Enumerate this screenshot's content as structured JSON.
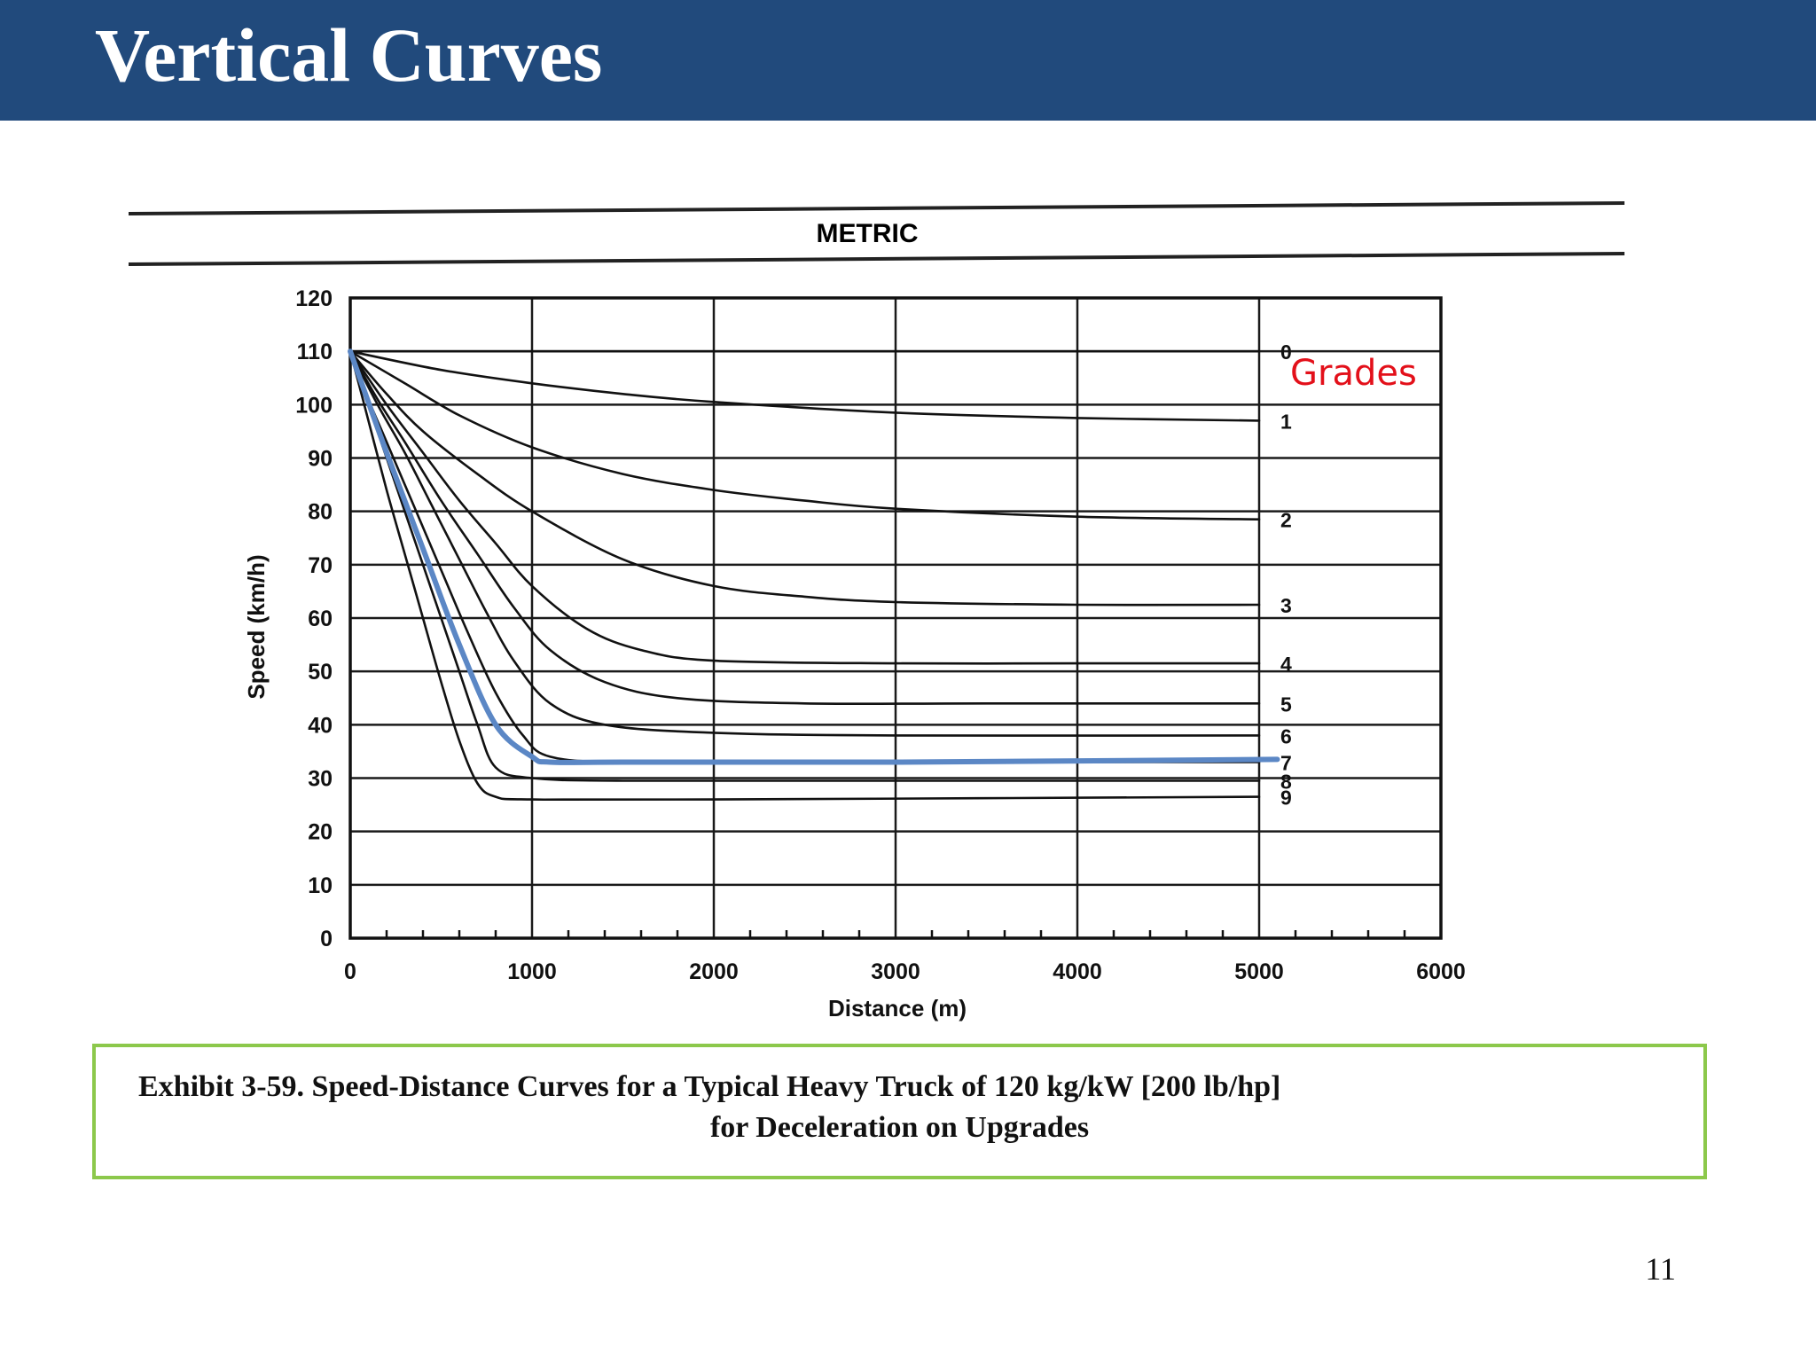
{
  "slide": {
    "title": "Vertical Curves",
    "page_number": "11",
    "header_color": "#214a7c"
  },
  "chart_header": {
    "label": "METRIC"
  },
  "annotation": {
    "text": "Grades",
    "color": "#e3101a"
  },
  "caption": {
    "line1": "Exhibit 3-59.  Speed-Distance Curves for a Typical Heavy Truck of 120 kg/kW [200 lb/hp]",
    "line2": "for Deceleration on Upgrades",
    "border_color": "#8cc84b"
  },
  "chart_data": {
    "type": "line",
    "title": "",
    "xlabel": "Distance (m)",
    "ylabel": "Speed (km/h)",
    "xlim": [
      0,
      6000
    ],
    "ylim": [
      0,
      120
    ],
    "x_ticks": [
      "0",
      "1000",
      "2000",
      "3000",
      "4000",
      "5000",
      "6000"
    ],
    "y_ticks": [
      "0",
      "10",
      "20",
      "30",
      "40",
      "50",
      "60",
      "70",
      "80",
      "90",
      "100",
      "110",
      "120"
    ],
    "grid": true,
    "initial_speed": 110,
    "legend": "series labels at right end of curves",
    "series": [
      {
        "name": "0",
        "x": [
          0,
          5000
        ],
        "y": [
          110,
          110
        ]
      },
      {
        "name": "1",
        "x": [
          0,
          500,
          1000,
          1500,
          2000,
          3000,
          4000,
          5000
        ],
        "y": [
          110,
          106.5,
          104,
          102,
          100.5,
          98.5,
          97.5,
          97
        ]
      },
      {
        "name": "2",
        "x": [
          0,
          300,
          600,
          1000,
          1500,
          2000,
          2500,
          3000,
          4000,
          5000
        ],
        "y": [
          110,
          104,
          98,
          92,
          87,
          84,
          82,
          80.5,
          79,
          78.5
        ]
      },
      {
        "name": "3",
        "x": [
          0,
          200,
          400,
          700,
          1000,
          1500,
          2000,
          2500,
          3000,
          4000,
          5000
        ],
        "y": [
          110,
          102,
          95,
          87,
          80,
          71,
          66,
          64,
          63,
          62.5,
          62.5
        ]
      },
      {
        "name": "4",
        "x": [
          0,
          200,
          400,
          600,
          800,
          1000,
          1300,
          1600,
          2000,
          3000,
          4000,
          5000
        ],
        "y": [
          110,
          100,
          91,
          82,
          74,
          66,
          58,
          54,
          52,
          51.5,
          51.5,
          51.5
        ]
      },
      {
        "name": "5",
        "x": [
          0,
          150,
          300,
          500,
          700,
          900,
          1100,
          1400,
          1800,
          2500,
          3500,
          5000
        ],
        "y": [
          110,
          101,
          93,
          82,
          72,
          62,
          54,
          48,
          45,
          44,
          44,
          44
        ]
      },
      {
        "name": "6",
        "x": [
          0,
          150,
          300,
          450,
          600,
          750,
          900,
          1100,
          1400,
          2000,
          3000,
          5000
        ],
        "y": [
          110,
          100,
          91,
          81,
          71,
          61,
          52,
          44,
          40,
          38.5,
          38,
          38
        ]
      },
      {
        "name": "7",
        "x": [
          0,
          100,
          200,
          350,
          500,
          650,
          800,
          950,
          1100,
          1500,
          2500,
          5000
        ],
        "y": [
          110,
          101,
          93,
          81,
          69,
          57,
          46,
          38,
          34,
          33,
          33,
          33
        ]
      },
      {
        "name": "8",
        "x": [
          0,
          100,
          200,
          300,
          400,
          500,
          600,
          700,
          800,
          1000,
          1500,
          3000,
          5000
        ],
        "y": [
          110,
          100,
          90,
          80,
          70,
          60,
          50,
          40,
          32,
          30,
          29.5,
          29.5,
          29.5
        ]
      },
      {
        "name": "9",
        "x": [
          0,
          100,
          200,
          300,
          400,
          500,
          600,
          700,
          800,
          1000,
          2000,
          5000
        ],
        "y": [
          110,
          97,
          84,
          72,
          60,
          48,
          37,
          29,
          26.5,
          26,
          26,
          26.5
        ]
      },
      {
        "name": "",
        "highlight": true,
        "color": "#5b87c5",
        "x": [
          0,
          200,
          400,
          600,
          800,
          1000,
          1100,
          1500,
          3000,
          5100
        ],
        "y": [
          110,
          91,
          73,
          55,
          40,
          34,
          33,
          33,
          33,
          33.5
        ]
      }
    ]
  }
}
